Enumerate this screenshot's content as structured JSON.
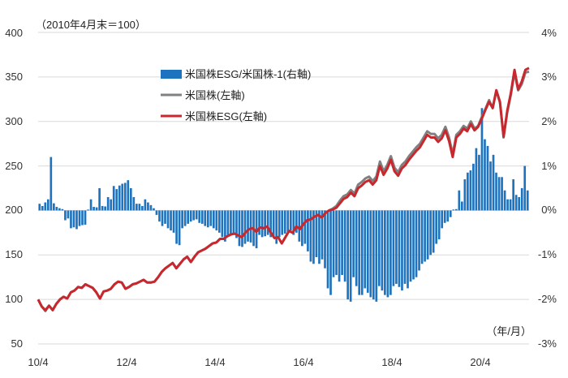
{
  "chart_data": {
    "type": "bar+line",
    "note": "（2010年4月末＝100）",
    "x_unit_label": "（年/月）",
    "x_tick_labels": [
      "10/4",
      "12/4",
      "14/4",
      "16/4",
      "18/4",
      "20/4"
    ],
    "left_axis": {
      "ticks": [
        50,
        100,
        150,
        200,
        250,
        300,
        350,
        400
      ],
      "range": [
        50,
        400
      ]
    },
    "right_axis": {
      "ticks": [
        "-3%",
        "-2%",
        "-1%",
        "0%",
        "1%",
        "2%",
        "3%",
        "4%"
      ],
      "range": [
        -3,
        4
      ]
    },
    "legend_position": "top-center",
    "colors": {
      "bar": "#1e73be",
      "us_stock": "#808080",
      "esg": "#c8282d",
      "grid": "#d9d9d9"
    },
    "series": [
      {
        "name": "米国株ESG/米国株-1(右軸)",
        "type": "bar",
        "axis": "right",
        "values": [
          0.15,
          0.1,
          0.18,
          0.25,
          1.2,
          0.16,
          0.08,
          0.05,
          0.03,
          -0.22,
          -0.18,
          -0.4,
          -0.38,
          -0.42,
          -0.35,
          -0.33,
          -0.32,
          0.02,
          0.25,
          0.08,
          0.07,
          0.5,
          0.1,
          0.09,
          0.3,
          0.25,
          0.55,
          0.48,
          0.56,
          0.6,
          0.62,
          0.68,
          0.5,
          0.3,
          0.15,
          0.15,
          0.1,
          0.25,
          0.18,
          0.12,
          0.05,
          -0.1,
          -0.25,
          -0.35,
          -0.3,
          -0.4,
          -0.45,
          -0.5,
          -0.75,
          -0.78,
          -0.4,
          -0.35,
          -0.3,
          -0.25,
          -0.22,
          -0.2,
          -0.28,
          -0.3,
          -0.35,
          -0.38,
          -0.35,
          -0.4,
          -0.45,
          -0.5,
          -0.6,
          -0.7,
          -0.55,
          -0.55,
          -0.55,
          -0.62,
          -0.8,
          -0.82,
          -0.75,
          -0.7,
          -0.72,
          -0.8,
          -0.85,
          -0.55,
          -0.6,
          -0.58,
          -0.55,
          -0.6,
          -0.62,
          -0.75,
          -0.6,
          -0.55,
          -0.52,
          -0.48,
          -0.45,
          -0.55,
          -0.5,
          -0.7,
          -0.8,
          -0.75,
          -0.92,
          -1.15,
          -1.2,
          -1.05,
          -1.2,
          -1.1,
          -1.3,
          -1.75,
          -1.9,
          -1.5,
          -1.45,
          -1.6,
          -1.45,
          -1.6,
          -2.0,
          -2.05,
          -1.5,
          -1.7,
          -1.9,
          -1.9,
          -1.75,
          -1.85,
          -1.95,
          -2.0,
          -2.05,
          -1.7,
          -1.8,
          -1.9,
          -1.95,
          -1.9,
          -1.7,
          -1.65,
          -1.72,
          -1.8,
          -1.65,
          -1.75,
          -1.6,
          -1.55,
          -1.5,
          -1.35,
          -1.2,
          -1.15,
          -1.1,
          -1.0,
          -0.95,
          -0.75,
          -0.65,
          -0.4,
          -0.28,
          -0.25,
          -0.15,
          0.02,
          0.03,
          0.45,
          0.2,
          0.7,
          0.85,
          0.9,
          1.05,
          1.4,
          1.25,
          2.3,
          1.6,
          1.45,
          1.1,
          1.25,
          0.85,
          0.75,
          0.75,
          0.45,
          0.25,
          0.25,
          0.7,
          0.35,
          0.3,
          0.5,
          1.0,
          0.45
        ],
        "color": "#1e73be"
      },
      {
        "name": "米国株(左軸)",
        "type": "line",
        "axis": "left",
        "values": [
          100,
          92,
          87,
          93,
          88,
          95,
          100,
          103,
          101,
          108,
          110,
          114,
          113,
          117,
          115,
          113,
          108,
          101,
          109,
          110,
          112,
          117,
          120,
          119,
          112,
          114,
          117,
          118,
          120,
          122,
          119,
          119,
          120,
          125,
          131,
          135,
          138,
          141,
          135,
          140,
          145,
          148,
          142,
          148,
          153,
          155,
          157,
          160,
          163,
          164,
          168,
          168,
          171,
          173,
          174,
          172,
          170,
          175,
          179,
          180,
          176,
          181,
          180,
          182,
          175,
          169,
          170,
          163,
          170,
          177,
          175,
          182,
          179,
          185,
          189,
          190,
          193,
          195,
          192,
          197,
          200,
          202,
          205,
          211,
          216,
          218,
          223,
          219,
          229,
          232,
          236,
          238,
          233,
          238,
          255,
          244,
          251,
          261,
          248,
          243,
          251,
          255,
          261,
          266,
          271,
          275,
          282,
          289,
          286,
          286,
          281,
          285,
          294,
          282,
          263,
          285,
          289,
          295,
          292,
          300,
          292,
          295,
          305,
          314,
          324,
          315,
          335,
          321,
          282,
          310,
          330,
          355,
          335,
          342,
          355,
          356
        ],
        "color": "#808080"
      },
      {
        "name": "米国株ESG(左軸)",
        "type": "line",
        "axis": "left",
        "values": [
          100,
          92,
          88,
          93,
          88,
          95,
          100,
          103,
          101,
          108,
          110,
          114,
          113,
          117,
          115,
          113,
          108,
          101,
          109,
          110,
          112,
          117,
          120,
          119,
          112,
          114,
          117,
          118,
          120,
          122,
          119,
          119,
          120,
          125,
          131,
          135,
          138,
          141,
          135,
          140,
          145,
          148,
          142,
          148,
          153,
          155,
          157,
          160,
          163,
          164,
          168,
          168,
          171,
          173,
          174,
          172,
          170,
          175,
          179,
          180,
          176,
          181,
          180,
          182,
          175,
          169,
          170,
          163,
          170,
          177,
          175,
          182,
          179,
          185,
          189,
          190,
          193,
          195,
          192,
          197,
          200,
          201,
          203,
          208,
          213,
          215,
          220,
          216,
          225,
          228,
          232,
          234,
          229,
          234,
          250,
          240,
          247,
          257,
          244,
          239,
          247,
          251,
          257,
          262,
          267,
          271,
          278,
          285,
          282,
          282,
          277,
          281,
          290,
          278,
          260,
          282,
          286,
          292,
          289,
          297,
          290,
          294,
          303,
          313,
          322,
          315,
          335,
          322,
          283,
          312,
          332,
          358,
          336,
          345,
          358,
          360
        ],
        "color": "#c8282d"
      }
    ]
  }
}
